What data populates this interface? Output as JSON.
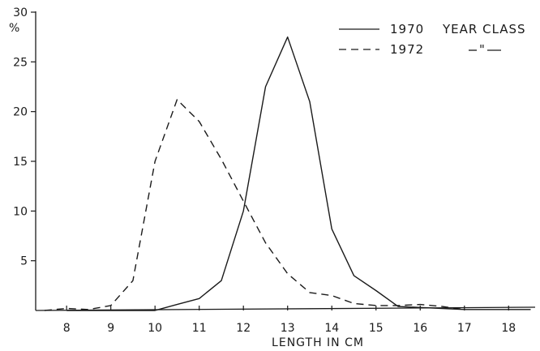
{
  "chart_data": {
    "type": "line",
    "title": "",
    "xlabel": "LENGTH IN CM",
    "ylabel": "%",
    "xlim": [
      7.3,
      18.6
    ],
    "ylim": [
      0,
      30
    ],
    "x_ticks": [
      8,
      9,
      10,
      11,
      12,
      13,
      14,
      15,
      16,
      17,
      18
    ],
    "y_ticks": [
      5,
      10,
      15,
      20,
      25,
      30
    ],
    "grid": false,
    "legend": {
      "placement": "top-right",
      "entries": [
        {
          "label": "1970",
          "suffix": "YEAR CLASS"
        },
        {
          "label": "1972",
          "suffix": "\""
        }
      ]
    },
    "series": [
      {
        "name": "1970 YEAR CLASS",
        "style": "solid",
        "color": "#1a1a1a",
        "x": [
          8,
          8.5,
          9,
          9.5,
          10,
          10.5,
          11,
          11.5,
          12,
          12.5,
          13,
          13.5,
          14,
          14.5,
          15,
          15.5,
          16,
          16.5,
          17,
          17.5,
          18,
          18.5
        ],
        "y": [
          0,
          0,
          0,
          0,
          0,
          0.6,
          1.2,
          3.0,
          10.0,
          22.5,
          27.5,
          21.0,
          8.2,
          3.5,
          2.0,
          0.4,
          0.3,
          0.2,
          0.1,
          0.1,
          0.1,
          0.1
        ]
      },
      {
        "name": "1972",
        "style": "dashed",
        "color": "#1a1a1a",
        "x": [
          7.5,
          8,
          8.5,
          9,
          9.5,
          10,
          10.5,
          11,
          11.5,
          12,
          12.5,
          13,
          13.5,
          14,
          14.5,
          15,
          15.5,
          16,
          16.5,
          17
        ],
        "y": [
          0,
          0.2,
          0.1,
          0.5,
          3.0,
          15.0,
          21.2,
          19.0,
          15.2,
          11.0,
          6.8,
          3.7,
          1.8,
          1.5,
          0.7,
          0.5,
          0.5,
          0.6,
          0.4,
          0.1
        ]
      }
    ]
  }
}
